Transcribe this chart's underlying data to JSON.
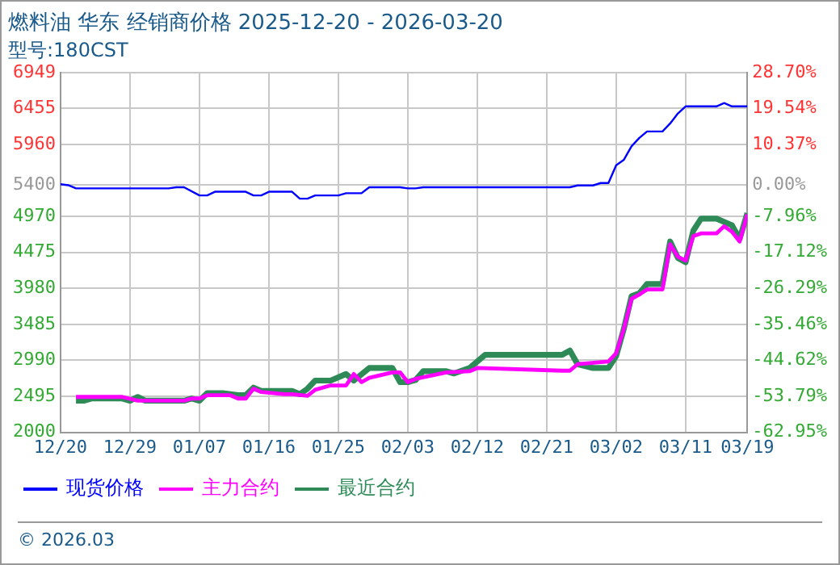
{
  "chart_data": {
    "type": "line",
    "title": "燃料油 华东 经销商价格 2025-12-20 - 2026-03-20",
    "subtitle": "型号:180CST",
    "xlim": [
      "2025-12-20",
      "2026-03-19"
    ],
    "xticks": [
      {
        "value": "2025-12-20",
        "label": "12/20"
      },
      {
        "value": "2025-12-29",
        "label": "12/29"
      },
      {
        "value": "2026-01-07",
        "label": "01/07"
      },
      {
        "value": "2026-01-16",
        "label": "01/16"
      },
      {
        "value": "2026-01-25",
        "label": "01/25"
      },
      {
        "value": "2026-02-03",
        "label": "02/03"
      },
      {
        "value": "2026-02-12",
        "label": "02/12"
      },
      {
        "value": "2026-02-21",
        "label": "02/21"
      },
      {
        "value": "2026-03-02",
        "label": "03/02"
      },
      {
        "value": "2026-03-11",
        "label": "03/11"
      },
      {
        "value": "2026-03-19",
        "label": "03/19"
      }
    ],
    "ylim": [
      2000,
      6949
    ],
    "yticks": [
      2000,
      2495,
      2990,
      3485,
      3980,
      4475,
      4970,
      5400,
      5960,
      6455,
      6949
    ],
    "y2lim": [
      -62.95,
      28.7
    ],
    "y2ticks": [
      {
        "value": -62.95,
        "label": "-62.95%"
      },
      {
        "value": -53.79,
        "label": "-53.79%"
      },
      {
        "value": -44.62,
        "label": "-44.62%"
      },
      {
        "value": -35.46,
        "label": "-35.46%"
      },
      {
        "value": -26.29,
        "label": "-26.29%"
      },
      {
        "value": -17.12,
        "label": "-17.12%"
      },
      {
        "value": -7.96,
        "label": "-7.96%"
      },
      {
        "value": 0,
        "label": "0.00%"
      },
      {
        "value": 10.37,
        "label": "10.37%"
      },
      {
        "value": 19.54,
        "label": "19.54%"
      },
      {
        "value": 28.7,
        "label": "28.70%"
      }
    ],
    "grid": true,
    "legend": "bottom",
    "marker": "none",
    "line_style": "solid",
    "series": [
      {
        "name": "现货价格",
        "color": "#0000ff",
        "x": [
          "2025-12-20",
          "2025-12-21",
          "2025-12-22",
          "2026-01-03",
          "2026-01-04",
          "2026-01-05",
          "2026-01-07",
          "2026-01-08",
          "2026-01-09",
          "2026-01-13",
          "2026-01-14",
          "2026-01-15",
          "2026-01-16",
          "2026-01-19",
          "2026-01-20",
          "2026-01-21",
          "2026-01-22",
          "2026-01-25",
          "2026-01-26",
          "2026-01-28",
          "2026-01-29",
          "2026-02-02",
          "2026-02-03",
          "2026-02-04",
          "2026-02-05",
          "2026-02-24",
          "2026-02-25",
          "2026-02-27",
          "2026-02-28",
          "2026-03-01",
          "2026-03-02",
          "2026-03-03",
          "2026-03-04",
          "2026-03-05",
          "2026-03-06",
          "2026-03-08",
          "2026-03-09",
          "2026-03-10",
          "2026-03-11",
          "2026-03-15",
          "2026-03-16",
          "2026-03-17",
          "2026-03-19"
        ],
        "values": [
          5413,
          5400,
          5357,
          5357,
          5372,
          5372,
          5260,
          5260,
          5310,
          5310,
          5260,
          5260,
          5310,
          5310,
          5215,
          5215,
          5260,
          5260,
          5290,
          5290,
          5372,
          5372,
          5357,
          5357,
          5372,
          5372,
          5397,
          5397,
          5430,
          5430,
          5675,
          5750,
          5937,
          6050,
          6140,
          6140,
          6250,
          6388,
          6485,
          6485,
          6530,
          6485,
          6485
        ]
      },
      {
        "name": "主力合约",
        "color": "#ff00ff",
        "x": [
          "2025-12-22",
          "2025-12-28",
          "2025-12-30",
          "2026-01-05",
          "2026-01-06",
          "2026-01-07",
          "2026-01-08",
          "2026-01-11",
          "2026-01-12",
          "2026-01-13",
          "2026-01-14",
          "2026-01-15",
          "2026-01-18",
          "2026-01-19",
          "2026-01-21",
          "2026-01-22",
          "2026-01-24",
          "2026-01-26",
          "2026-01-27",
          "2026-01-28",
          "2026-01-29",
          "2026-02-01",
          "2026-02-02",
          "2026-02-03",
          "2026-02-04",
          "2026-02-08",
          "2026-02-11",
          "2026-02-12",
          "2026-02-23",
          "2026-02-24",
          "2026-02-25",
          "2026-03-01",
          "2026-03-02",
          "2026-03-03",
          "2026-03-04",
          "2026-03-05",
          "2026-03-06",
          "2026-03-08",
          "2026-03-09",
          "2026-03-10",
          "2026-03-11",
          "2026-03-12",
          "2026-03-13",
          "2026-03-15",
          "2026-03-16",
          "2026-03-17",
          "2026-03-18",
          "2026-03-19"
        ],
        "values": [
          2487,
          2487,
          2435,
          2435,
          2465,
          2465,
          2510,
          2510,
          2465,
          2465,
          2600,
          2555,
          2525,
          2525,
          2502,
          2585,
          2645,
          2645,
          2802,
          2690,
          2750,
          2825,
          2825,
          2690,
          2735,
          2825,
          2840,
          2885,
          2848,
          2848,
          2937,
          2975,
          3087,
          3425,
          3837,
          3897,
          3965,
          3965,
          4587,
          4415,
          4362,
          4700,
          4737,
          4737,
          4835,
          4760,
          4625,
          5000
        ]
      },
      {
        "name": "最近合约",
        "color": "#2e8b57",
        "x": [
          "2025-12-22",
          "2025-12-23",
          "2025-12-24",
          "2025-12-28",
          "2025-12-29",
          "2025-12-30",
          "2025-12-31",
          "2026-01-05",
          "2026-01-06",
          "2026-01-07",
          "2026-01-08",
          "2026-01-10",
          "2026-01-12",
          "2026-01-13",
          "2026-01-14",
          "2026-01-15",
          "2026-01-19",
          "2026-01-20",
          "2026-01-21",
          "2026-01-22",
          "2026-01-24",
          "2026-01-26",
          "2026-01-27",
          "2026-01-29",
          "2026-02-01",
          "2026-02-02",
          "2026-02-03",
          "2026-02-04",
          "2026-02-05",
          "2026-02-08",
          "2026-02-09",
          "2026-02-11",
          "2026-02-13",
          "2026-02-23",
          "2026-02-24",
          "2026-02-25",
          "2026-02-27",
          "2026-03-01",
          "2026-03-02",
          "2026-03-03",
          "2026-03-04",
          "2026-03-05",
          "2026-03-06",
          "2026-03-08",
          "2026-03-09",
          "2026-03-10",
          "2026-03-11",
          "2026-03-12",
          "2026-03-13",
          "2026-03-15",
          "2026-03-17",
          "2026-03-18",
          "2026-03-19"
        ],
        "values": [
          2435,
          2435,
          2465,
          2465,
          2435,
          2487,
          2435,
          2435,
          2465,
          2435,
          2540,
          2540,
          2510,
          2510,
          2615,
          2570,
          2570,
          2525,
          2600,
          2712,
          2712,
          2802,
          2712,
          2885,
          2885,
          2690,
          2690,
          2720,
          2840,
          2840,
          2810,
          2885,
          3065,
          3065,
          3125,
          2937,
          2885,
          2885,
          3050,
          3425,
          3875,
          3912,
          4040,
          4040,
          4625,
          4400,
          4340,
          4775,
          4940,
          4940,
          4850,
          4662,
          5015
        ]
      }
    ],
    "annotations": [
      "© 2026.03"
    ]
  }
}
